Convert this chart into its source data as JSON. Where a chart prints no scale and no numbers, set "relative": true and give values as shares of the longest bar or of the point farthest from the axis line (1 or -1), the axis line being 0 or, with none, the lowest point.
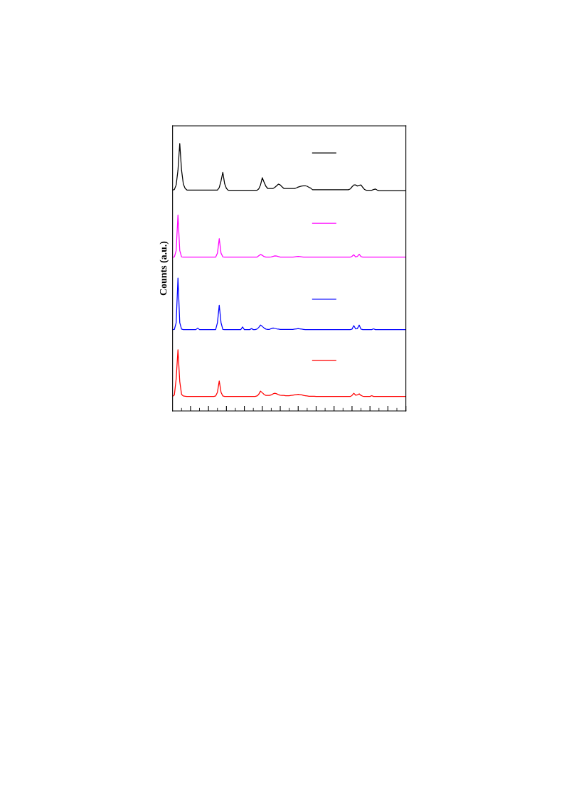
{
  "chart_data": {
    "type": "line",
    "relative": true,
    "ylabel": "Counts (a.u.)",
    "grid": false,
    "marker": "none",
    "line_style": "solid",
    "categories": [
      null,
      null,
      null,
      null,
      null,
      null,
      null,
      null,
      null,
      null,
      null,
      null,
      null,
      null,
      null,
      null,
      null,
      null,
      null,
      null,
      null,
      null,
      null,
      null,
      null,
      null,
      null,
      null,
      null,
      null,
      null,
      null,
      null,
      null,
      null,
      null,
      null,
      null,
      null,
      null,
      null,
      null,
      null,
      null,
      null,
      null,
      null,
      null,
      null,
      null,
      null,
      null,
      null,
      null,
      null,
      null,
      null,
      null,
      null,
      null,
      null,
      null,
      null,
      null,
      null,
      null,
      null,
      null,
      null,
      null,
      null,
      null,
      null,
      null,
      null,
      null,
      null,
      null,
      null,
      null,
      null,
      null,
      null,
      null,
      null,
      null,
      null,
      null,
      null,
      null,
      null,
      null,
      null,
      null,
      null,
      null,
      null,
      null,
      null,
      null,
      null,
      null,
      null,
      null,
      null,
      null,
      null,
      null,
      null,
      null,
      null,
      null,
      null,
      null,
      null,
      null,
      null,
      null,
      null,
      null,
      null,
      null,
      null,
      null,
      null,
      null,
      null,
      null,
      null,
      null,
      null
    ],
    "series": [
      {
        "color": "#000000",
        "values": [
          0.826,
          0.828,
          0.845,
          0.9,
          1.0,
          0.9,
          0.848,
          0.832,
          0.826,
          0.826,
          0.826,
          0.826,
          0.826,
          0.826,
          0.826,
          0.826,
          0.826,
          0.826,
          0.826,
          0.826,
          0.826,
          0.826,
          0.826,
          0.826,
          0.826,
          0.826,
          0.835,
          0.86,
          0.892,
          0.85,
          0.832,
          0.825,
          0.825,
          0.825,
          0.825,
          0.825,
          0.825,
          0.825,
          0.825,
          0.825,
          0.825,
          0.825,
          0.825,
          0.825,
          0.825,
          0.825,
          0.825,
          0.825,
          0.83,
          0.845,
          0.872,
          0.855,
          0.84,
          0.832,
          0.832,
          0.832,
          0.832,
          0.836,
          0.842,
          0.848,
          0.845,
          0.838,
          0.832,
          0.832,
          0.832,
          0.832,
          0.832,
          0.832,
          0.832,
          0.834,
          0.837,
          0.839,
          0.841,
          0.842,
          0.842,
          0.84,
          0.836,
          0.833,
          0.827,
          0.827,
          0.827,
          0.827,
          0.827,
          0.827,
          0.827,
          0.827,
          0.827,
          0.827,
          0.827,
          0.827,
          0.827,
          0.827,
          0.827,
          0.827,
          0.827,
          0.827,
          0.827,
          0.827,
          0.827,
          0.83,
          0.838,
          0.845,
          0.845,
          0.841,
          0.844,
          0.845,
          0.836,
          0.828,
          0.825,
          0.825,
          0.825,
          0.825,
          0.828,
          0.83,
          0.826,
          0.824,
          0.824,
          0.824,
          0.824,
          0.824,
          0.824,
          0.824,
          0.824,
          0.824,
          0.824,
          0.824,
          0.824,
          0.824,
          0.824,
          0.824,
          0.824
        ]
      },
      {
        "color": "#ff00ff",
        "values": [
          0.575,
          0.576,
          0.6,
          0.733,
          0.6,
          0.576,
          0.575,
          0.575,
          0.575,
          0.575,
          0.575,
          0.575,
          0.575,
          0.575,
          0.575,
          0.575,
          0.575,
          0.575,
          0.575,
          0.575,
          0.575,
          0.575,
          0.575,
          0.575,
          0.575,
          0.59,
          0.644,
          0.59,
          0.576,
          0.575,
          0.575,
          0.575,
          0.575,
          0.575,
          0.575,
          0.575,
          0.575,
          0.575,
          0.575,
          0.575,
          0.575,
          0.575,
          0.575,
          0.575,
          0.575,
          0.575,
          0.575,
          0.575,
          0.58,
          0.585,
          0.582,
          0.577,
          0.575,
          0.575,
          0.575,
          0.576,
          0.578,
          0.58,
          0.579,
          0.577,
          0.575,
          0.575,
          0.575,
          0.575,
          0.575,
          0.575,
          0.575,
          0.575,
          0.576,
          0.577,
          0.578,
          0.577,
          0.576,
          0.575,
          0.575,
          0.575,
          0.575,
          0.575,
          0.575,
          0.575,
          0.575,
          0.575,
          0.575,
          0.575,
          0.575,
          0.575,
          0.575,
          0.575,
          0.575,
          0.575,
          0.575,
          0.575,
          0.575,
          0.575,
          0.575,
          0.575,
          0.575,
          0.575,
          0.575,
          0.575,
          0.578,
          0.584,
          0.576,
          0.578,
          0.586,
          0.577,
          0.575,
          0.575,
          0.575,
          0.575,
          0.575,
          0.575,
          0.575,
          0.575,
          0.575,
          0.575,
          0.575,
          0.575,
          0.575,
          0.575,
          0.575,
          0.575,
          0.575,
          0.575,
          0.575,
          0.575,
          0.575,
          0.575,
          0.575,
          0.575,
          0.575
        ]
      },
      {
        "color": "#0000ff",
        "values": [
          0.304,
          0.305,
          0.33,
          0.497,
          0.33,
          0.306,
          0.304,
          0.304,
          0.304,
          0.304,
          0.304,
          0.304,
          0.304,
          0.304,
          0.31,
          0.304,
          0.304,
          0.304,
          0.304,
          0.304,
          0.304,
          0.304,
          0.304,
          0.304,
          0.304,
          0.33,
          0.395,
          0.33,
          0.305,
          0.304,
          0.304,
          0.304,
          0.304,
          0.304,
          0.304,
          0.304,
          0.304,
          0.304,
          0.304,
          0.314,
          0.304,
          0.304,
          0.304,
          0.304,
          0.308,
          0.304,
          0.304,
          0.306,
          0.312,
          0.321,
          0.316,
          0.31,
          0.306,
          0.305,
          0.305,
          0.308,
          0.31,
          0.309,
          0.307,
          0.306,
          0.305,
          0.305,
          0.305,
          0.305,
          0.305,
          0.305,
          0.305,
          0.305,
          0.306,
          0.307,
          0.308,
          0.307,
          0.306,
          0.305,
          0.304,
          0.304,
          0.304,
          0.304,
          0.304,
          0.304,
          0.304,
          0.304,
          0.304,
          0.304,
          0.304,
          0.304,
          0.304,
          0.304,
          0.304,
          0.304,
          0.304,
          0.304,
          0.304,
          0.304,
          0.304,
          0.304,
          0.304,
          0.304,
          0.304,
          0.304,
          0.306,
          0.319,
          0.307,
          0.308,
          0.321,
          0.306,
          0.304,
          0.304,
          0.304,
          0.304,
          0.304,
          0.304,
          0.307,
          0.304,
          0.304,
          0.304,
          0.304,
          0.304,
          0.304,
          0.304,
          0.304,
          0.304,
          0.304,
          0.304,
          0.304,
          0.304,
          0.304,
          0.304,
          0.304,
          0.304,
          0.304
        ]
      },
      {
        "color": "#ff0000",
        "values": [
          0.055,
          0.06,
          0.12,
          0.229,
          0.11,
          0.062,
          0.056,
          0.055,
          0.054,
          0.054,
          0.054,
          0.054,
          0.054,
          0.054,
          0.054,
          0.054,
          0.054,
          0.054,
          0.054,
          0.054,
          0.054,
          0.054,
          0.054,
          0.054,
          0.056,
          0.07,
          0.112,
          0.07,
          0.056,
          0.054,
          0.054,
          0.054,
          0.054,
          0.054,
          0.054,
          0.054,
          0.054,
          0.054,
          0.054,
          0.054,
          0.054,
          0.054,
          0.054,
          0.054,
          0.054,
          0.054,
          0.054,
          0.056,
          0.062,
          0.074,
          0.068,
          0.062,
          0.058,
          0.058,
          0.058,
          0.06,
          0.064,
          0.066,
          0.064,
          0.061,
          0.059,
          0.058,
          0.058,
          0.057,
          0.057,
          0.057,
          0.058,
          0.059,
          0.06,
          0.061,
          0.062,
          0.061,
          0.06,
          0.058,
          0.057,
          0.056,
          0.055,
          0.055,
          0.055,
          0.055,
          0.054,
          0.054,
          0.054,
          0.054,
          0.054,
          0.054,
          0.054,
          0.054,
          0.054,
          0.054,
          0.054,
          0.054,
          0.054,
          0.054,
          0.054,
          0.054,
          0.054,
          0.054,
          0.054,
          0.054,
          0.058,
          0.066,
          0.059,
          0.06,
          0.064,
          0.058,
          0.055,
          0.054,
          0.054,
          0.054,
          0.054,
          0.057,
          0.054,
          0.054,
          0.054,
          0.054,
          0.054,
          0.054,
          0.054,
          0.054,
          0.054,
          0.054,
          0.054,
          0.054,
          0.054,
          0.054,
          0.054,
          0.054,
          0.054,
          0.054,
          0.054
        ]
      }
    ]
  }
}
